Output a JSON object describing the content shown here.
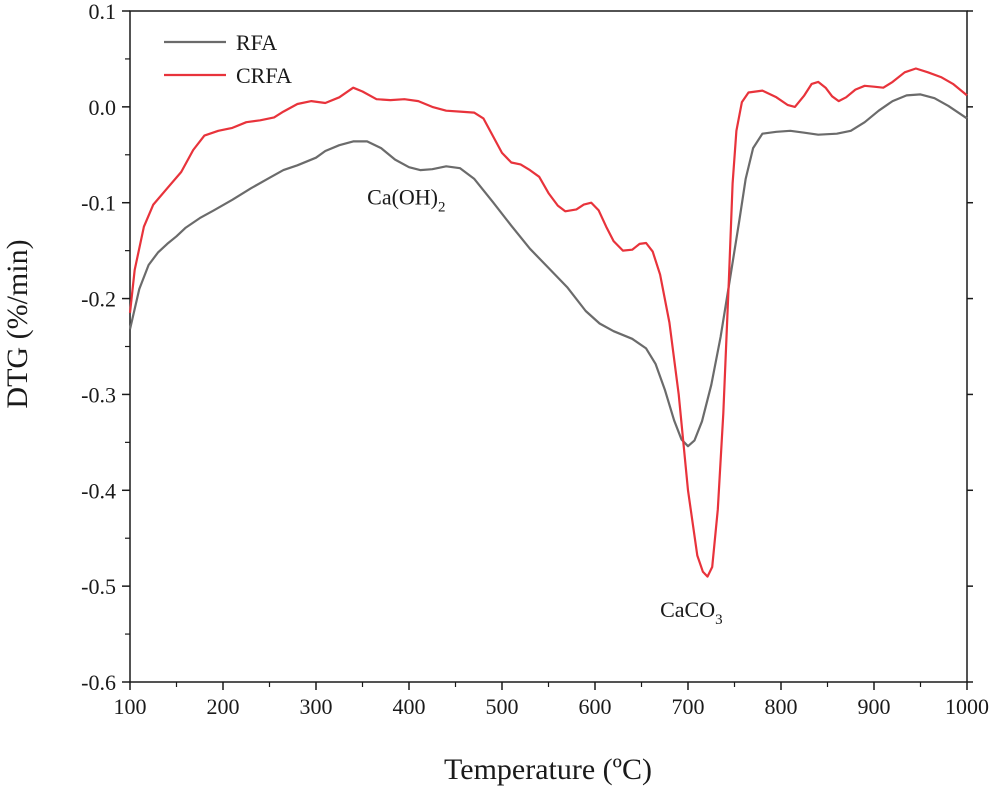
{
  "chart_data": {
    "type": "line",
    "xlabel": "Temperature (ºC)",
    "ylabel": "DTG (%/min)",
    "xlim": [
      100,
      1000
    ],
    "ylim": [
      -0.6,
      0.1
    ],
    "xticks": [
      {
        "value": 100,
        "label": "100"
      },
      {
        "value": 200,
        "label": "200"
      },
      {
        "value": 300,
        "label": "300"
      },
      {
        "value": 400,
        "label": "400"
      },
      {
        "value": 500,
        "label": "500"
      },
      {
        "value": 600,
        "label": "600"
      },
      {
        "value": 700,
        "label": "700"
      },
      {
        "value": 800,
        "label": "800"
      },
      {
        "value": 900,
        "label": "900"
      },
      {
        "value": 1000,
        "label": "1000"
      }
    ],
    "yticks": [
      {
        "value": 0.1,
        "label": "0.1"
      },
      {
        "value": 0.0,
        "label": "0.0"
      },
      {
        "value": -0.1,
        "label": "-0.1"
      },
      {
        "value": -0.2,
        "label": "-0.2"
      },
      {
        "value": -0.3,
        "label": "-0.3"
      },
      {
        "value": -0.4,
        "label": "-0.4"
      },
      {
        "value": -0.5,
        "label": "-0.5"
      },
      {
        "value": -0.6,
        "label": "-0.6"
      }
    ],
    "grid": false,
    "legend_position": "top-left",
    "series": [
      {
        "name": "RFA",
        "color": "#6b6b6b",
        "points": [
          [
            100,
            -0.232
          ],
          [
            110,
            -0.19
          ],
          [
            120,
            -0.165
          ],
          [
            130,
            -0.152
          ],
          [
            140,
            -0.143
          ],
          [
            150,
            -0.135
          ],
          [
            160,
            -0.126
          ],
          [
            175,
            -0.116
          ],
          [
            190,
            -0.108
          ],
          [
            210,
            -0.097
          ],
          [
            230,
            -0.085
          ],
          [
            250,
            -0.074
          ],
          [
            265,
            -0.066
          ],
          [
            280,
            -0.061
          ],
          [
            300,
            -0.053
          ],
          [
            310,
            -0.046
          ],
          [
            325,
            -0.04
          ],
          [
            340,
            -0.036
          ],
          [
            355,
            -0.036
          ],
          [
            370,
            -0.043
          ],
          [
            385,
            -0.055
          ],
          [
            400,
            -0.063
          ],
          [
            412,
            -0.066
          ],
          [
            425,
            -0.065
          ],
          [
            440,
            -0.062
          ],
          [
            455,
            -0.064
          ],
          [
            470,
            -0.075
          ],
          [
            490,
            -0.099
          ],
          [
            510,
            -0.124
          ],
          [
            530,
            -0.148
          ],
          [
            550,
            -0.168
          ],
          [
            570,
            -0.188
          ],
          [
            590,
            -0.213
          ],
          [
            605,
            -0.226
          ],
          [
            620,
            -0.234
          ],
          [
            640,
            -0.242
          ],
          [
            655,
            -0.252
          ],
          [
            665,
            -0.268
          ],
          [
            675,
            -0.295
          ],
          [
            685,
            -0.327
          ],
          [
            693,
            -0.347
          ],
          [
            700,
            -0.354
          ],
          [
            707,
            -0.348
          ],
          [
            715,
            -0.328
          ],
          [
            725,
            -0.29
          ],
          [
            735,
            -0.24
          ],
          [
            745,
            -0.18
          ],
          [
            755,
            -0.12
          ],
          [
            762,
            -0.075
          ],
          [
            770,
            -0.043
          ],
          [
            780,
            -0.028
          ],
          [
            795,
            -0.026
          ],
          [
            810,
            -0.025
          ],
          [
            825,
            -0.027
          ],
          [
            840,
            -0.029
          ],
          [
            860,
            -0.028
          ],
          [
            875,
            -0.025
          ],
          [
            890,
            -0.016
          ],
          [
            905,
            -0.004
          ],
          [
            920,
            0.006
          ],
          [
            935,
            0.012
          ],
          [
            950,
            0.013
          ],
          [
            965,
            0.009
          ],
          [
            980,
            0.001
          ],
          [
            1000,
            -0.012
          ]
        ]
      },
      {
        "name": "CRFA",
        "color": "#e8333b",
        "points": [
          [
            100,
            -0.215
          ],
          [
            105,
            -0.17
          ],
          [
            115,
            -0.125
          ],
          [
            125,
            -0.102
          ],
          [
            140,
            -0.085
          ],
          [
            155,
            -0.068
          ],
          [
            168,
            -0.045
          ],
          [
            180,
            -0.03
          ],
          [
            195,
            -0.025
          ],
          [
            210,
            -0.022
          ],
          [
            225,
            -0.016
          ],
          [
            240,
            -0.014
          ],
          [
            255,
            -0.011
          ],
          [
            265,
            -0.005
          ],
          [
            280,
            0.003
          ],
          [
            295,
            0.006
          ],
          [
            310,
            0.004
          ],
          [
            325,
            0.01
          ],
          [
            340,
            0.02
          ],
          [
            350,
            0.016
          ],
          [
            365,
            0.008
          ],
          [
            380,
            0.007
          ],
          [
            395,
            0.008
          ],
          [
            410,
            0.006
          ],
          [
            425,
            0.0
          ],
          [
            440,
            -0.004
          ],
          [
            455,
            -0.005
          ],
          [
            470,
            -0.006
          ],
          [
            480,
            -0.012
          ],
          [
            490,
            -0.03
          ],
          [
            500,
            -0.048
          ],
          [
            510,
            -0.058
          ],
          [
            520,
            -0.06
          ],
          [
            530,
            -0.066
          ],
          [
            540,
            -0.073
          ],
          [
            550,
            -0.09
          ],
          [
            560,
            -0.103
          ],
          [
            568,
            -0.109
          ],
          [
            580,
            -0.107
          ],
          [
            588,
            -0.102
          ],
          [
            596,
            -0.1
          ],
          [
            604,
            -0.108
          ],
          [
            612,
            -0.125
          ],
          [
            620,
            -0.14
          ],
          [
            630,
            -0.15
          ],
          [
            640,
            -0.149
          ],
          [
            648,
            -0.143
          ],
          [
            655,
            -0.142
          ],
          [
            662,
            -0.151
          ],
          [
            670,
            -0.175
          ],
          [
            680,
            -0.225
          ],
          [
            690,
            -0.3
          ],
          [
            700,
            -0.4
          ],
          [
            710,
            -0.468
          ],
          [
            716,
            -0.485
          ],
          [
            721,
            -0.49
          ],
          [
            726,
            -0.48
          ],
          [
            732,
            -0.42
          ],
          [
            738,
            -0.32
          ],
          [
            744,
            -0.18
          ],
          [
            748,
            -0.08
          ],
          [
            752,
            -0.025
          ],
          [
            758,
            0.005
          ],
          [
            765,
            0.015
          ],
          [
            780,
            0.017
          ],
          [
            795,
            0.01
          ],
          [
            807,
            0.002
          ],
          [
            815,
            0.0
          ],
          [
            825,
            0.012
          ],
          [
            833,
            0.024
          ],
          [
            840,
            0.026
          ],
          [
            848,
            0.02
          ],
          [
            855,
            0.011
          ],
          [
            862,
            0.006
          ],
          [
            870,
            0.01
          ],
          [
            880,
            0.018
          ],
          [
            890,
            0.022
          ],
          [
            900,
            0.021
          ],
          [
            910,
            0.02
          ],
          [
            920,
            0.026
          ],
          [
            933,
            0.036
          ],
          [
            945,
            0.04
          ],
          [
            958,
            0.036
          ],
          [
            972,
            0.031
          ],
          [
            985,
            0.024
          ],
          [
            1000,
            0.012
          ]
        ]
      }
    ],
    "annotations": [
      {
        "label": "Ca(OH)",
        "subscript": "2",
        "x": 355,
        "y": -0.102
      },
      {
        "label": "CaCO",
        "subscript": "3",
        "x": 670,
        "y": -0.532
      }
    ]
  }
}
